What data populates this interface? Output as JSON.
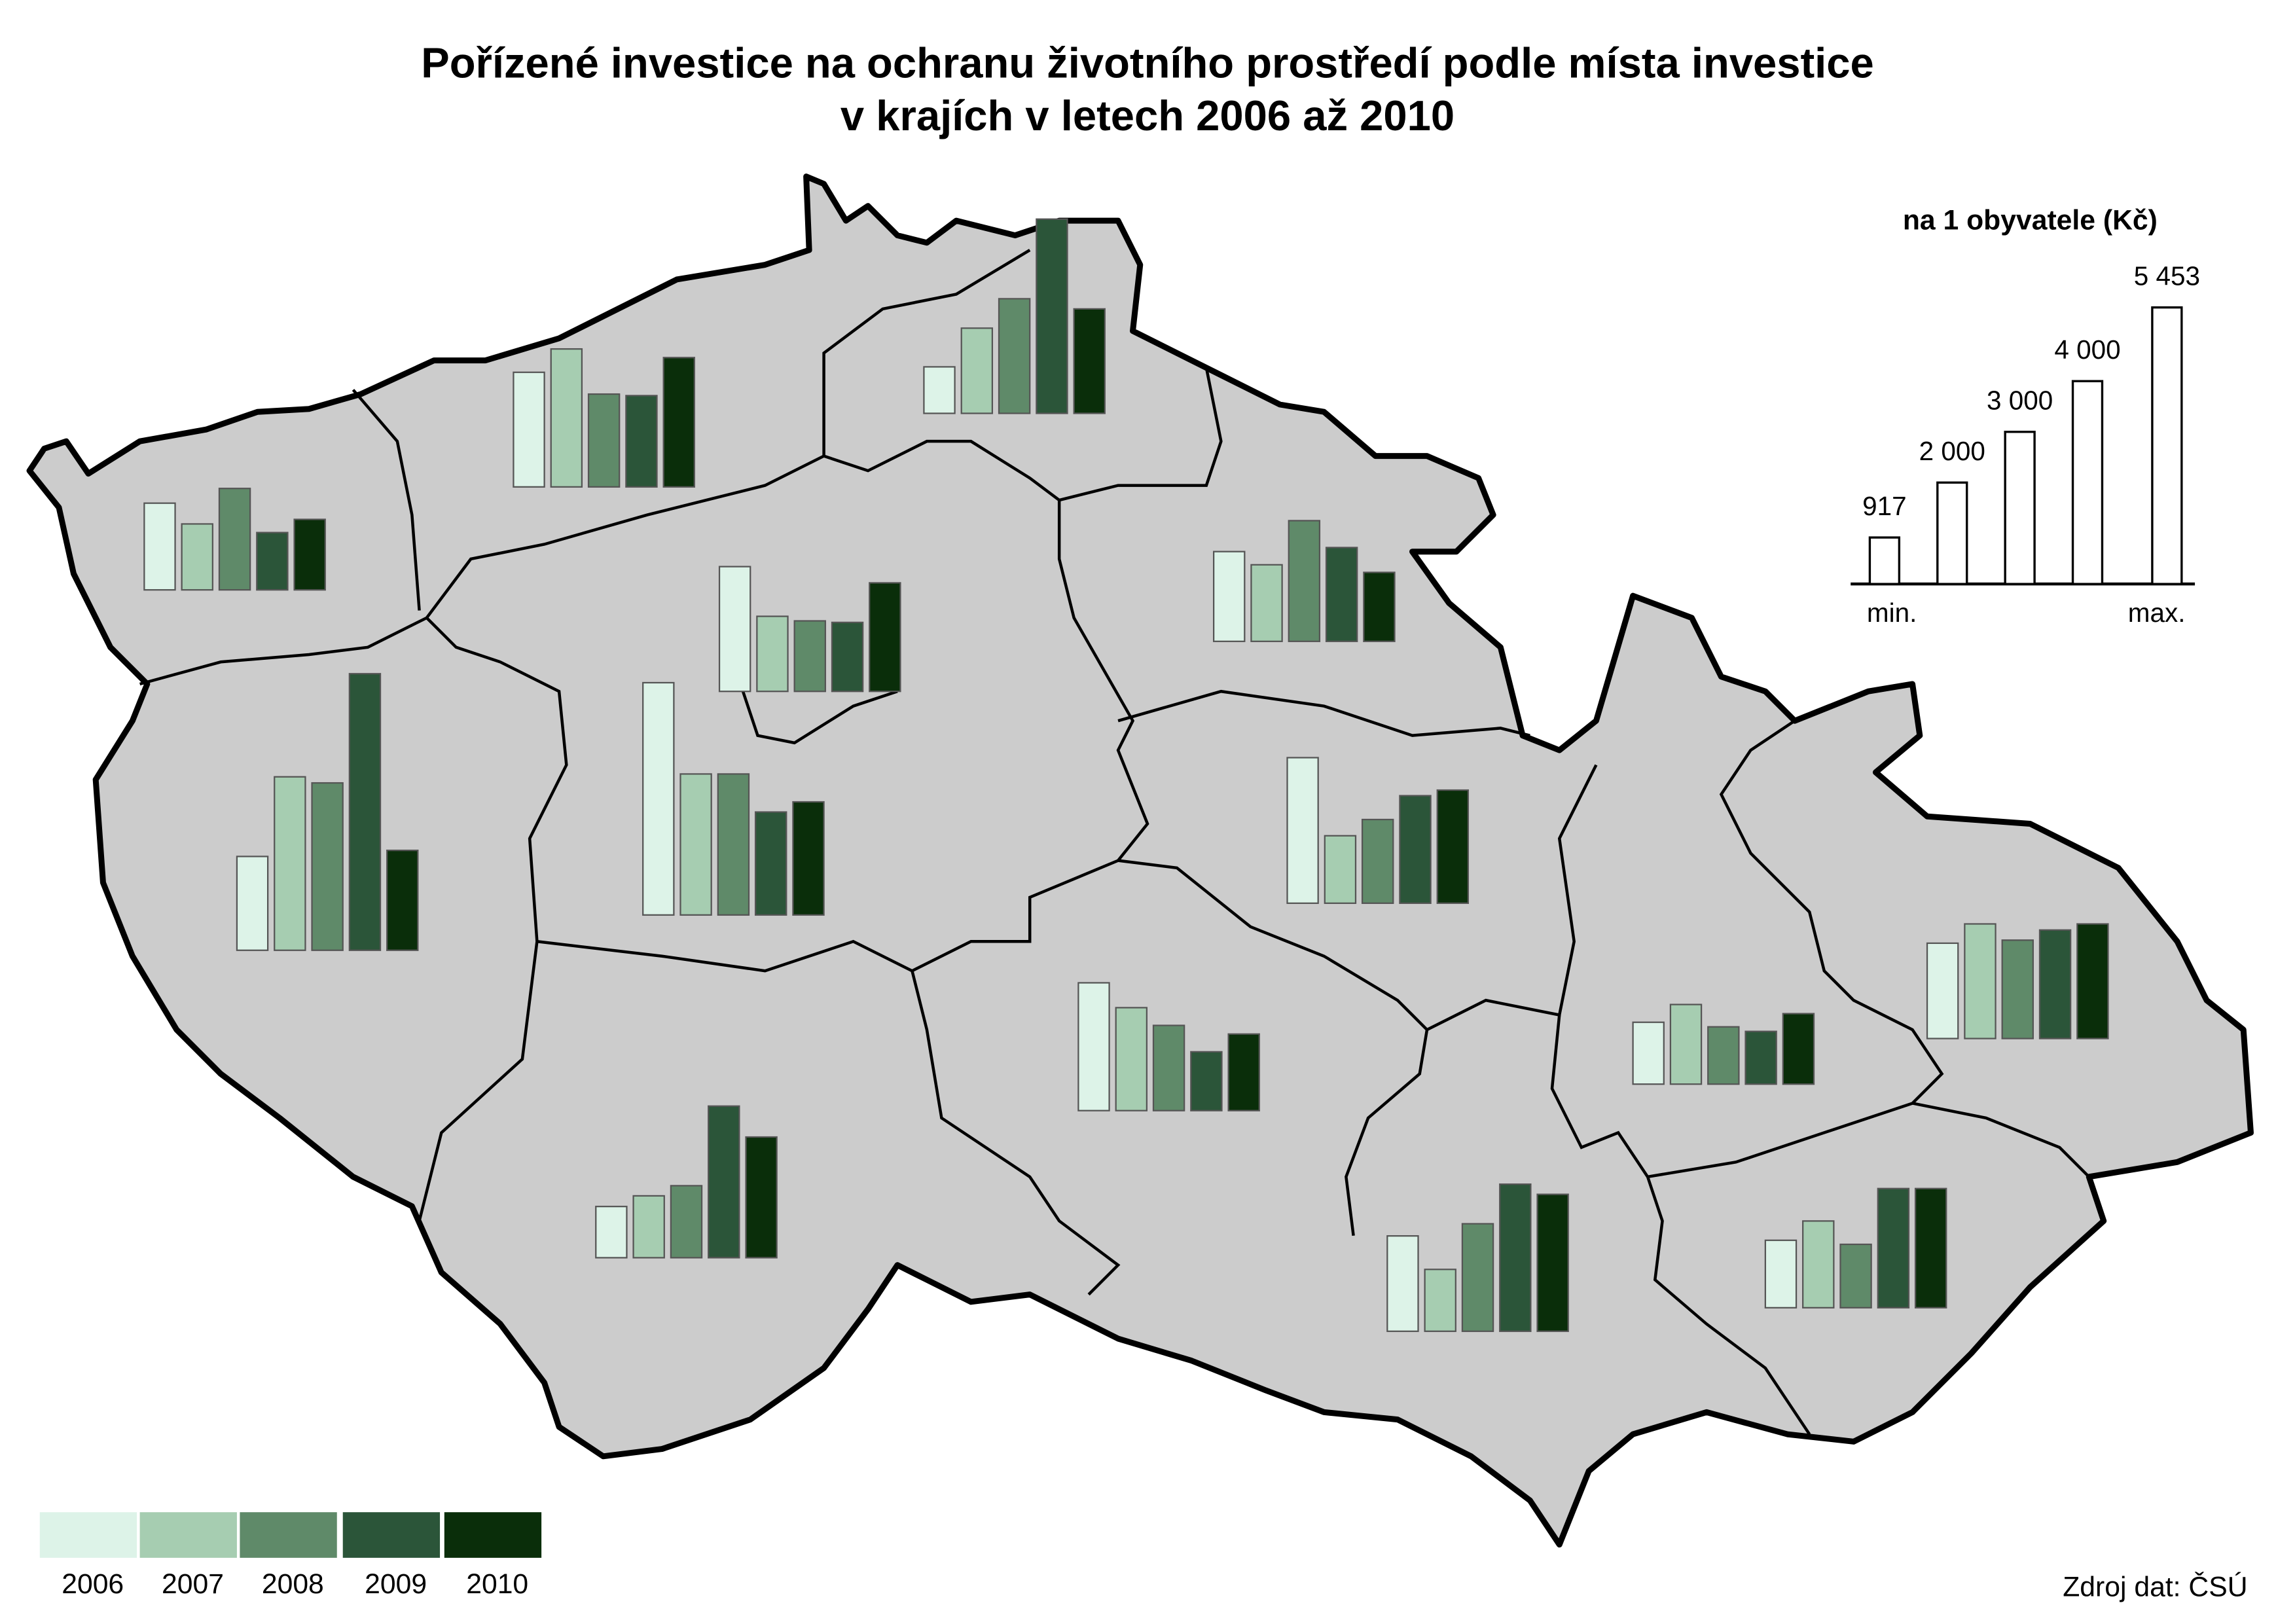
{
  "title_lines": [
    "Pořízené investice na ochranu životního prostředí podle místa investice",
    "v krajích v letech 2006 až 2010"
  ],
  "scale": {
    "title": "na 1 obyvatele (Kč)",
    "values": [
      917,
      2000,
      3000,
      4000,
      5453
    ],
    "value_labels": [
      "917",
      "2 000",
      "3 000",
      "4 000",
      "5 453"
    ],
    "min_label": "min.",
    "max_label": "max."
  },
  "legend": {
    "years": [
      "2006",
      "2007",
      "2008",
      "2009",
      "2010"
    ],
    "colors": [
      "#ddf3e8",
      "#a6cdb1",
      "#5f8a69",
      "#2b5539",
      "#0a2e0a"
    ]
  },
  "regions": [
    {
      "values": [
        1710,
        1300,
        2000,
        1130,
        1390
      ]
    },
    {
      "values": [
        2260,
        2720,
        1830,
        1800,
        2550
      ]
    },
    {
      "values": [
        917,
        1680,
        2260,
        3830,
        2060
      ]
    },
    {
      "values": [
        1850,
        3420,
        3300,
        5453,
        1970
      ]
    },
    {
      "values": [
        2460,
        1480,
        1390,
        1360,
        2140
      ]
    },
    {
      "values": [
        4580,
        2780,
        2780,
        2030,
        2230
      ]
    },
    {
      "values": [
        1770,
        1510,
        2380,
        1850,
        1360
      ]
    },
    {
      "values": [
        2870,
        1330,
        1650,
        2120,
        2230
      ]
    },
    {
      "values": [
        2520,
        2030,
        1680,
        1160,
        1510
      ]
    },
    {
      "values": [
        1010,
        1220,
        1420,
        2990,
        2380
      ]
    },
    {
      "values": [
        1880,
        1220,
        2120,
        2900,
        2700
      ]
    },
    {
      "values": [
        1220,
        1570,
        1130,
        1040,
        1390
      ]
    },
    {
      "values": [
        1880,
        2260,
        1940,
        2140,
        2260
      ]
    },
    {
      "values": [
        1330,
        1710,
        1250,
        2350,
        2350
      ]
    }
  ],
  "source": "Zdroj dat: ČSÚ"
}
